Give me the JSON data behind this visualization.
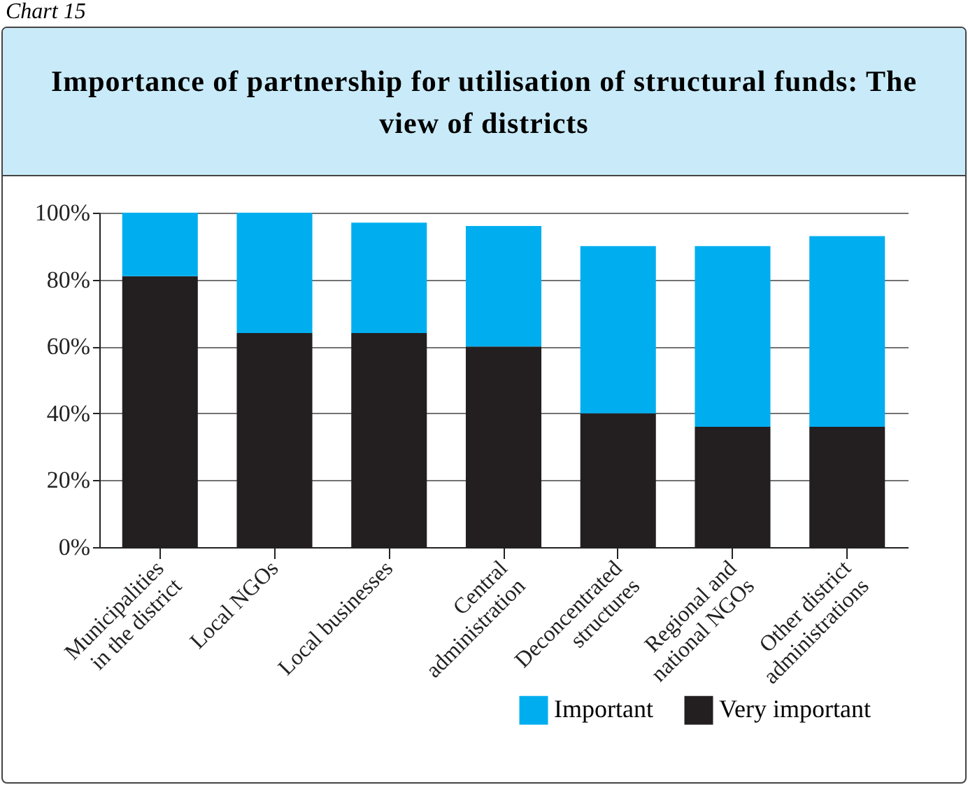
{
  "chart_data": {
    "type": "bar",
    "title": "Importance of partnership for utilisation of structural funds: The view of districts",
    "annotations": [
      "Chart 15"
    ],
    "categories": [
      "Municipalities in the district",
      "Local NGOs",
      "Local businesses",
      "Central administration",
      "Deconcentrated structures",
      "Regional and national NGOs",
      "Other district administrations"
    ],
    "stacked": true,
    "series": [
      {
        "name": "Very important",
        "color": "#231f20",
        "values": [
          81,
          64,
          64,
          60,
          40,
          36,
          36
        ]
      },
      {
        "name": "Important",
        "color": "#00aeef",
        "values": [
          19,
          36,
          33,
          36,
          50,
          54,
          57
        ]
      }
    ],
    "ylim": [
      0,
      100
    ],
    "yticks": [
      {
        "value": 0,
        "label": "0%"
      },
      {
        "value": 20,
        "label": "20%"
      },
      {
        "value": 40,
        "label": "40%"
      },
      {
        "value": 60,
        "label": "60%"
      },
      {
        "value": 80,
        "label": "80%"
      },
      {
        "value": 100,
        "label": "100%"
      }
    ],
    "grid": "y",
    "legend": "bottom right"
  }
}
